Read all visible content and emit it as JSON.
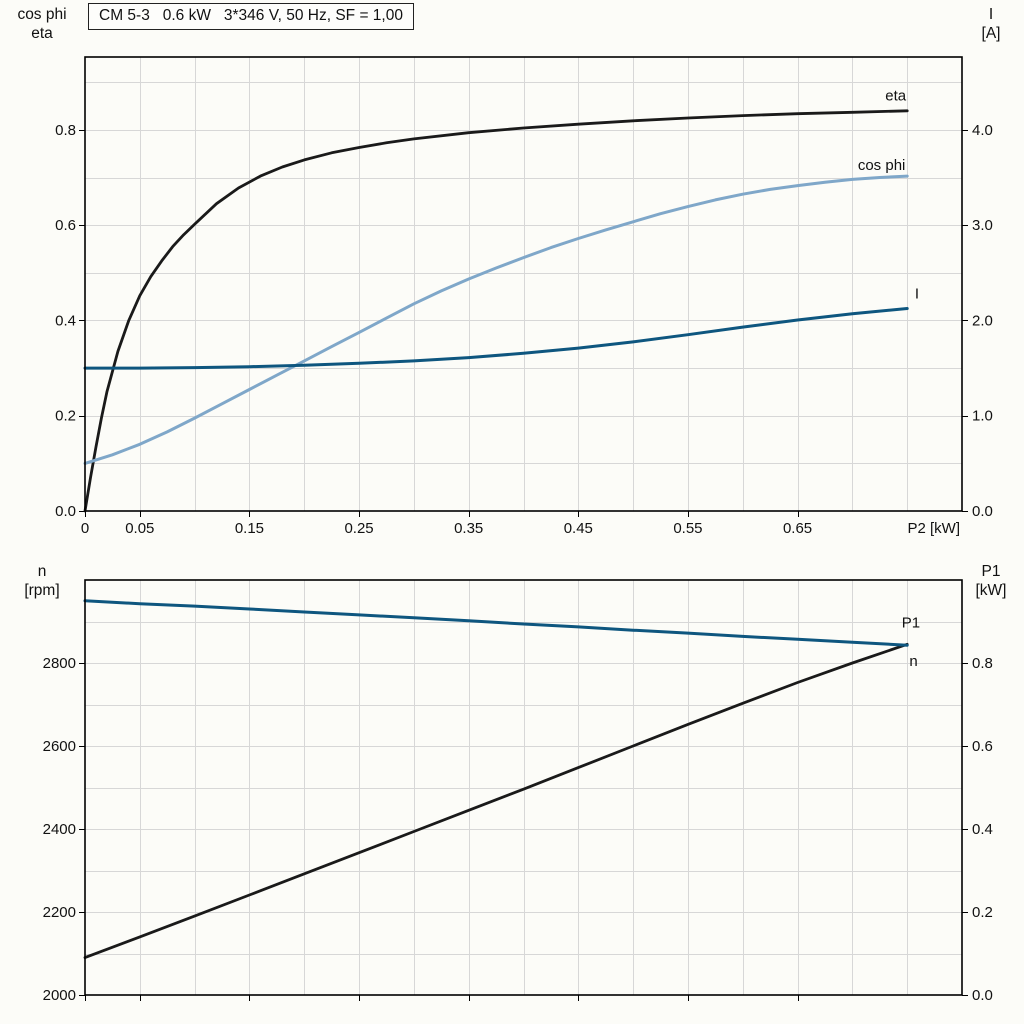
{
  "colors": {
    "black": "#1a1a1a",
    "dark_blue": "#0e567f",
    "light_blue": "#7fa7c9",
    "grid": "#d7d7d7",
    "frame": "#000000",
    "background": "#fcfcf8"
  },
  "chart_data": [
    {
      "type": "line",
      "title": "CM 5-3   0.6 kW   3*346 V, 50 Hz, SF = 1,00",
      "x_axis": {
        "label": "P2 [kW]",
        "min": 0,
        "max": 0.8,
        "grid_step": 0.05,
        "ticks": [
          0,
          0.05,
          0.15,
          0.25,
          0.35,
          0.45,
          0.55,
          0.65
        ],
        "tick_labels": [
          "0",
          "0.05",
          "0.15",
          "0.25",
          "0.35",
          "0.45",
          "0.55",
          "0.65"
        ]
      },
      "y_left": {
        "label_lines": [
          "cos phi",
          "eta"
        ],
        "min": 0,
        "max": 0.953,
        "grid_step": 0.1,
        "ticks": [
          0,
          0.2,
          0.4,
          0.6,
          0.8
        ],
        "tick_labels": [
          "0.0",
          "0.2",
          "0.4",
          "0.6",
          "0.8"
        ]
      },
      "y_right": {
        "label_lines": [
          "I",
          "[A]"
        ],
        "min": 0,
        "max": 4.765,
        "ticks": [
          0,
          1,
          2,
          3,
          4
        ],
        "tick_labels": [
          "0.0",
          "1.0",
          "2.0",
          "3.0",
          "4.0"
        ]
      },
      "grid": true,
      "legend_position": "inline-labels",
      "series": [
        {
          "name": "eta",
          "color": "#1a1a1a",
          "axis": "left",
          "width": 2.8,
          "label": {
            "text": "eta",
            "x": 0.73,
            "y": 0.862
          },
          "points": [
            [
              0,
              0
            ],
            [
              0.005,
              0.07
            ],
            [
              0.01,
              0.135
            ],
            [
              0.015,
              0.195
            ],
            [
              0.02,
              0.25
            ],
            [
              0.03,
              0.335
            ],
            [
              0.04,
              0.4
            ],
            [
              0.05,
              0.452
            ],
            [
              0.06,
              0.492
            ],
            [
              0.07,
              0.525
            ],
            [
              0.08,
              0.555
            ],
            [
              0.09,
              0.58
            ],
            [
              0.1,
              0.602
            ],
            [
              0.12,
              0.645
            ],
            [
              0.14,
              0.678
            ],
            [
              0.16,
              0.703
            ],
            [
              0.18,
              0.722
            ],
            [
              0.2,
              0.737
            ],
            [
              0.225,
              0.752
            ],
            [
              0.25,
              0.763
            ],
            [
              0.275,
              0.773
            ],
            [
              0.3,
              0.781
            ],
            [
              0.35,
              0.794
            ],
            [
              0.4,
              0.804
            ],
            [
              0.45,
              0.812
            ],
            [
              0.5,
              0.819
            ],
            [
              0.55,
              0.825
            ],
            [
              0.6,
              0.83
            ],
            [
              0.65,
              0.834
            ],
            [
              0.7,
              0.837
            ],
            [
              0.75,
              0.84
            ]
          ]
        },
        {
          "name": "cos_phi",
          "color": "#7fa7c9",
          "axis": "left",
          "width": 3,
          "label": {
            "text": "cos phi",
            "x": 0.705,
            "y": 0.716
          },
          "points": [
            [
              0,
              0.1
            ],
            [
              0.025,
              0.118
            ],
            [
              0.05,
              0.14
            ],
            [
              0.075,
              0.166
            ],
            [
              0.1,
              0.195
            ],
            [
              0.125,
              0.225
            ],
            [
              0.15,
              0.255
            ],
            [
              0.175,
              0.285
            ],
            [
              0.2,
              0.315
            ],
            [
              0.225,
              0.345
            ],
            [
              0.25,
              0.375
            ],
            [
              0.275,
              0.405
            ],
            [
              0.3,
              0.435
            ],
            [
              0.325,
              0.462
            ],
            [
              0.35,
              0.487
            ],
            [
              0.375,
              0.51
            ],
            [
              0.4,
              0.532
            ],
            [
              0.425,
              0.553
            ],
            [
              0.45,
              0.572
            ],
            [
              0.475,
              0.59
            ],
            [
              0.5,
              0.607
            ],
            [
              0.525,
              0.624
            ],
            [
              0.55,
              0.639
            ],
            [
              0.575,
              0.653
            ],
            [
              0.6,
              0.665
            ],
            [
              0.625,
              0.675
            ],
            [
              0.65,
              0.683
            ],
            [
              0.675,
              0.69
            ],
            [
              0.7,
              0.696
            ],
            [
              0.725,
              0.7
            ],
            [
              0.75,
              0.703
            ]
          ]
        },
        {
          "name": "I",
          "color": "#0e567f",
          "axis": "right",
          "width": 3,
          "label": {
            "text": "I",
            "x": 0.757,
            "y": 2.23
          },
          "points": [
            [
              0,
              1.5
            ],
            [
              0.05,
              1.5
            ],
            [
              0.1,
              1.505
            ],
            [
              0.15,
              1.515
            ],
            [
              0.2,
              1.53
            ],
            [
              0.25,
              1.55
            ],
            [
              0.3,
              1.575
            ],
            [
              0.35,
              1.61
            ],
            [
              0.4,
              1.655
            ],
            [
              0.45,
              1.71
            ],
            [
              0.5,
              1.775
            ],
            [
              0.55,
              1.85
            ],
            [
              0.6,
              1.93
            ],
            [
              0.65,
              2.005
            ],
            [
              0.7,
              2.07
            ],
            [
              0.75,
              2.125
            ]
          ]
        }
      ]
    },
    {
      "type": "line",
      "title": "",
      "x_axis": {
        "label": "",
        "min": 0,
        "max": 0.8,
        "grid_step": 0.05,
        "ticks": [
          0,
          0.05,
          0.15,
          0.25,
          0.35,
          0.45,
          0.55,
          0.65
        ]
      },
      "y_left": {
        "label_lines": [
          "n",
          "[rpm]"
        ],
        "min": 2000,
        "max": 3000,
        "grid_step": 100,
        "ticks": [
          2000,
          2200,
          2400,
          2600,
          2800
        ],
        "tick_labels": [
          "2000",
          "2200",
          "2400",
          "2600",
          "2800"
        ]
      },
      "y_right": {
        "label_lines": [
          "P1",
          "[kW]"
        ],
        "min": 0,
        "max": 1.0,
        "ticks": [
          0,
          0.2,
          0.4,
          0.6,
          0.8
        ],
        "tick_labels": [
          "0.0",
          "0.2",
          "0.4",
          "0.6",
          "0.8"
        ]
      },
      "grid": true,
      "legend_position": "inline-labels",
      "series": [
        {
          "name": "P1",
          "color": "#1a1a1a",
          "axis": "right",
          "width": 2.8,
          "label": {
            "text": "P1",
            "x": 0.745,
            "y": 0.885
          },
          "points": [
            [
              0,
              0.09
            ],
            [
              0.05,
              0.14
            ],
            [
              0.1,
              0.19
            ],
            [
              0.15,
              0.241
            ],
            [
              0.2,
              0.292
            ],
            [
              0.25,
              0.343
            ],
            [
              0.3,
              0.394
            ],
            [
              0.35,
              0.445
            ],
            [
              0.4,
              0.496
            ],
            [
              0.45,
              0.548
            ],
            [
              0.5,
              0.6
            ],
            [
              0.55,
              0.652
            ],
            [
              0.6,
              0.703
            ],
            [
              0.65,
              0.753
            ],
            [
              0.7,
              0.8
            ],
            [
              0.75,
              0.845
            ]
          ]
        },
        {
          "name": "n",
          "color": "#0e567f",
          "axis": "left",
          "width": 3,
          "label": {
            "text": "n",
            "x": 0.752,
            "y": 2793
          },
          "points": [
            [
              0,
              2950
            ],
            [
              0.05,
              2943
            ],
            [
              0.1,
              2937
            ],
            [
              0.15,
              2930
            ],
            [
              0.2,
              2923
            ],
            [
              0.25,
              2916
            ],
            [
              0.3,
              2909
            ],
            [
              0.35,
              2902
            ],
            [
              0.4,
              2894
            ],
            [
              0.45,
              2887
            ],
            [
              0.5,
              2879
            ],
            [
              0.55,
              2872
            ],
            [
              0.6,
              2864
            ],
            [
              0.65,
              2857
            ],
            [
              0.7,
              2850
            ],
            [
              0.75,
              2843
            ]
          ]
        }
      ]
    }
  ]
}
